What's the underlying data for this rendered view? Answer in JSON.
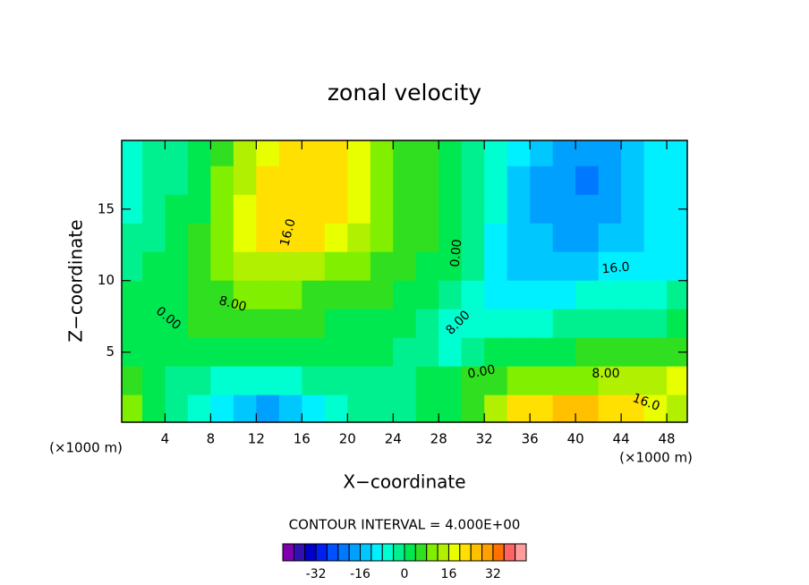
{
  "chart_data": {
    "type": "contour",
    "title": "zonal velocity",
    "xlabel": "X−coordinate",
    "ylabel": "Z−coordinate",
    "x_unit": "(×1000 m)",
    "xlim": [
      0.2,
      49.8
    ],
    "ylim": [
      0.1,
      19.8
    ],
    "xticks": [
      4,
      8,
      12,
      16,
      20,
      24,
      28,
      32,
      36,
      40,
      44,
      48
    ],
    "yticks": [
      5,
      10,
      15
    ],
    "x": [
      1,
      3,
      5,
      7,
      9,
      11,
      13,
      15,
      17,
      19,
      21,
      23,
      25,
      27,
      29,
      31,
      33,
      35,
      37,
      39,
      41,
      43,
      45,
      47,
      49
    ],
    "y": [
      19,
      17,
      15,
      13,
      11,
      9,
      7,
      5,
      3,
      1
    ],
    "z": [
      [
        -8,
        -4,
        -2,
        2,
        6,
        12,
        18,
        22,
        22,
        20,
        16,
        10,
        6,
        4,
        2,
        -2,
        -6,
        -12,
        -16,
        -17,
        -18,
        -17,
        -14,
        -12,
        -10
      ],
      [
        -6,
        -3,
        -1,
        3,
        8,
        14,
        20,
        23,
        23,
        21,
        17,
        11,
        6,
        4,
        2,
        -2,
        -7,
        -13,
        -17,
        -19,
        -21,
        -19,
        -15,
        -12,
        -10
      ],
      [
        -5,
        -2,
        0,
        3,
        9,
        16,
        22,
        23,
        22,
        20,
        16,
        10,
        6,
        4,
        2,
        -2,
        -8,
        -13,
        -18,
        -19,
        -19,
        -18,
        -15,
        -12,
        -11
      ],
      [
        -3,
        -1,
        1,
        4,
        10,
        16,
        20,
        21,
        20,
        17,
        13,
        9,
        6,
        4,
        1,
        -3,
        -9,
        -13,
        -16,
        -18,
        -17,
        -15,
        -13,
        -12,
        -11
      ],
      [
        -2,
        0,
        2,
        5,
        8,
        12,
        13,
        13,
        12,
        10,
        8,
        6,
        4,
        3,
        0,
        -4,
        -10,
        -13,
        -15,
        -15,
        -14,
        -12,
        -12,
        -11,
        -10
      ],
      [
        0,
        1,
        3,
        5,
        7,
        8,
        8,
        8,
        7,
        6,
        5,
        4,
        3,
        1,
        -2,
        -6,
        -10,
        -11,
        -10,
        -9,
        -8,
        -7,
        -6,
        -5,
        -4
      ],
      [
        1,
        2,
        3,
        4,
        5,
        5,
        5,
        5,
        4,
        3,
        3,
        2,
        1,
        -1,
        -5,
        -8,
        -7,
        -6,
        -5,
        -4,
        -3,
        -2,
        -2,
        -1,
        0
      ],
      [
        3,
        1,
        2,
        2,
        2,
        2,
        2,
        1,
        1,
        1,
        1,
        0,
        -1,
        -3,
        -6,
        -4,
        0,
        2,
        3,
        3,
        4,
        4,
        4,
        5,
        6
      ],
      [
        6,
        2,
        -2,
        -4,
        -6,
        -7,
        -8,
        -6,
        -4,
        -4,
        -3,
        -2,
        -2,
        0,
        1,
        4,
        6,
        8,
        10,
        10,
        11,
        12,
        12,
        14,
        16
      ],
      [
        9,
        3,
        -3,
        -6,
        -12,
        -16,
        -17,
        -15,
        -9,
        -6,
        -4,
        -3,
        -1,
        1,
        2,
        6,
        14,
        20,
        21,
        24,
        25,
        23,
        20,
        18,
        14
      ]
    ],
    "contour_labels": [
      "16.0",
      "8.00",
      "0.00",
      "0.00",
      "8.00",
      "16.0",
      "0.00",
      "8.00",
      "16.0"
    ],
    "contour_interval": "CONTOUR INTERVAL = 4.000E+00",
    "colorbar": {
      "levels": [
        -44,
        -40,
        -36,
        -32,
        -28,
        -24,
        -20,
        -16,
        -12,
        -8,
        -4,
        0,
        4,
        8,
        12,
        16,
        20,
        24,
        28,
        32,
        36,
        40,
        44
      ],
      "colors": [
        "#8000b0",
        "#3010b0",
        "#0000c8",
        "#0020f0",
        "#0050ff",
        "#0078ff",
        "#00a0ff",
        "#00c8ff",
        "#00f0ff",
        "#00ffd0",
        "#00f090",
        "#00e850",
        "#30e020",
        "#80f000",
        "#b0f000",
        "#e8ff00",
        "#ffe000",
        "#ffc000",
        "#ffa000",
        "#ff7000",
        "#ff6464",
        "#ff9c9c"
      ],
      "ticks": [
        -32,
        -16,
        0,
        16,
        32
      ]
    }
  }
}
